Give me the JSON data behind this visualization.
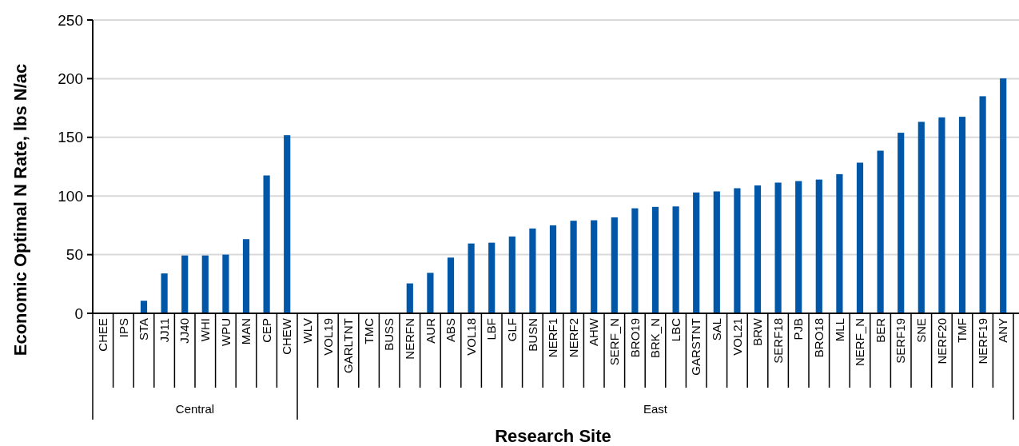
{
  "chart_data": {
    "type": "bar",
    "xlabel": "Research Site",
    "ylabel": "Economic Optimal N Rate, lbs N/ac",
    "categories": [
      "CHEE",
      "IPS",
      "STA",
      "JJ11",
      "JJ40",
      "WHI",
      "WPU",
      "MAN",
      "CEP",
      "CHEW",
      "WLV",
      "VOL19",
      "GARLTNT",
      "TMC",
      "BUSS",
      "NERFN",
      "AUR",
      "ABS",
      "VOL18",
      "LBF",
      "GLF",
      "BUSN",
      "NERF1",
      "NERF2",
      "AHW",
      "SERF_N",
      "BRO19",
      "BRK_N",
      "LBC",
      "GARSTNT",
      "SAL",
      "VOL21",
      "BRW",
      "SERF18",
      "PJB",
      "BRO18",
      "MLL",
      "NERF_N",
      "BER",
      "SERF19",
      "SNE",
      "NERF20",
      "TMF",
      "NERF19",
      "ANY"
    ],
    "values": [
      null,
      null,
      10.7,
      34,
      49.3,
      49.3,
      50,
      63.2,
      117.5,
      151.8,
      null,
      null,
      null,
      null,
      null,
      25.5,
      34.5,
      47.5,
      59.5,
      60.2,
      65.5,
      72.3,
      75,
      78.9,
      79.3,
      81.8,
      89.5,
      90.7,
      91.1,
      103,
      103.9,
      106.6,
      109,
      111.4,
      112.7,
      114,
      118.6,
      128.4,
      138.6,
      153.9,
      163.2,
      167,
      167.5,
      185,
      200.2
    ],
    "color": "#0057a8",
    "ylim": [
      0,
      250
    ],
    "yticks": [
      0,
      50,
      100,
      150,
      200,
      250
    ],
    "grid": "y",
    "annotations": [
      "Central",
      "East"
    ]
  }
}
